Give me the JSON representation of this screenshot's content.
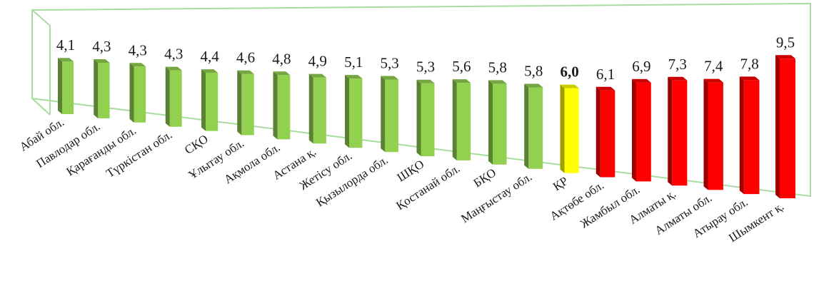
{
  "chart_data": {
    "type": "bar",
    "title": "",
    "xlabel": "",
    "ylabel": "",
    "ylim": [
      0,
      10
    ],
    "grid": false,
    "legend": "none",
    "categories": [
      "Абай обл.",
      "Павлодар обл.",
      "Қарағанды обл.",
      "Түркістан обл.",
      "СҚО",
      "Ұлытау обл.",
      "Ақмола обл.",
      "Астана қ.",
      "Жетісу обл.",
      "Қызылорда обл.",
      "ШҚО",
      "Қостанай обл.",
      "БҚО",
      "Маңғыстау обл.",
      "ҚР",
      "Ақтөбе обл.",
      "Жамбыл обл.",
      "Алматы қ.",
      "Алматы обл.",
      "Атырау обл.",
      "Шымкент қ."
    ],
    "values": [
      4.1,
      4.3,
      4.3,
      4.3,
      4.4,
      4.6,
      4.8,
      4.9,
      5.1,
      5.3,
      5.3,
      5.6,
      5.8,
      5.8,
      6.0,
      6.1,
      6.9,
      7.3,
      7.4,
      7.8,
      9.5
    ],
    "value_labels": [
      "4,1",
      "4,3",
      "4,3",
      "4,3",
      "4,4",
      "4,6",
      "4,8",
      "4,9",
      "5,1",
      "5,3",
      "5,3",
      "5,6",
      "5,8",
      "5,8",
      "6,0",
      "6,1",
      "6,9",
      "7,3",
      "7,4",
      "7,8",
      "9,5"
    ],
    "bold_index": 14,
    "colors": {
      "green": "#92d050",
      "yellow": "#ffff00",
      "red": "#ff0000",
      "frame": "#a9dca0"
    },
    "bar_colors": [
      "green",
      "green",
      "green",
      "green",
      "green",
      "green",
      "green",
      "green",
      "green",
      "green",
      "green",
      "green",
      "green",
      "green",
      "yellow",
      "red",
      "red",
      "red",
      "red",
      "red",
      "red"
    ]
  }
}
